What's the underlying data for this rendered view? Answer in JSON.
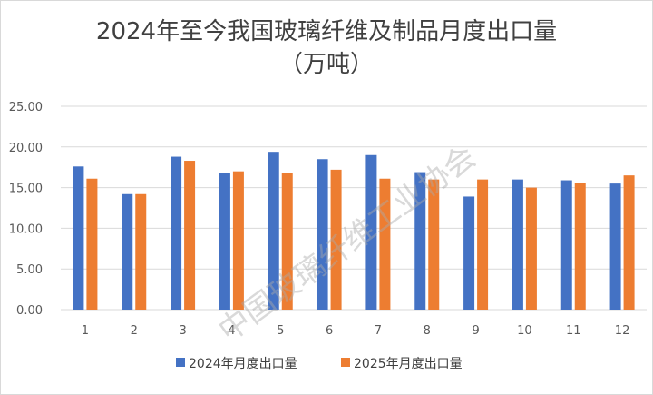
{
  "chart_data": {
    "type": "bar",
    "title": "2024年至今我国玻璃纤维及制品月度出口量",
    "subtitle": "（万吨）",
    "categories": [
      "1",
      "2",
      "3",
      "4",
      "5",
      "6",
      "7",
      "8",
      "9",
      "10",
      "11",
      "12"
    ],
    "series": [
      {
        "name": "2024年月度出口量",
        "color": "#4472C4",
        "values": [
          17.6,
          14.2,
          18.8,
          16.8,
          19.4,
          18.5,
          19.0,
          16.9,
          13.9,
          16.0,
          15.9,
          15.5
        ]
      },
      {
        "name": "2025年月度出口量",
        "color": "#ED7D31",
        "values": [
          16.1,
          14.2,
          18.3,
          17.0,
          16.8,
          17.2,
          16.1,
          16.0,
          16.0,
          15.0,
          15.6,
          16.5
        ]
      }
    ],
    "ylim": [
      0,
      25
    ],
    "yticks": [
      "0.00",
      "5.00",
      "10.00",
      "15.00",
      "20.00",
      "25.00"
    ],
    "grid": true,
    "legend_position": "bottom"
  },
  "watermark": "中国玻璃纤维工业协会"
}
